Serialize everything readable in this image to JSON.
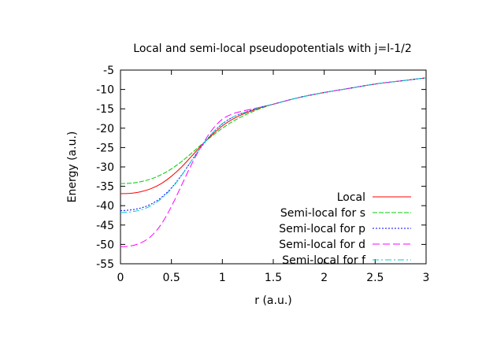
{
  "chart_data": {
    "type": "line",
    "title": "Local and semi-local pseudopotentials with j=l-1/2",
    "xlabel": "r (a.u.)",
    "ylabel": "Energy (a.u.)",
    "xlim": [
      0,
      3
    ],
    "ylim": [
      -55,
      -5
    ],
    "xticks": [
      0,
      0.5,
      1,
      1.5,
      2,
      2.5,
      3
    ],
    "xtick_labels": [
      "0",
      "0.5",
      "1",
      "1.5",
      "2",
      "2.5",
      "3"
    ],
    "yticks": [
      -55,
      -50,
      -45,
      -40,
      -35,
      -30,
      -25,
      -20,
      -15,
      -10,
      -5
    ],
    "ytick_labels": [
      "-55",
      "-50",
      "-45",
      "-40",
      "-35",
      "-30",
      "-25",
      "-20",
      "-15",
      "-10",
      "-5"
    ],
    "grid": false,
    "legend_position": "bottom-right",
    "x": [
      0,
      0.1,
      0.2,
      0.3,
      0.4,
      0.5,
      0.6,
      0.7,
      0.8,
      0.9,
      1.0,
      1.1,
      1.2,
      1.3,
      1.4,
      1.5,
      1.75,
      2.0,
      2.25,
      2.5,
      2.75,
      3.0
    ],
    "series": [
      {
        "name": "Local",
        "color": "#ff0000",
        "dash": "solid",
        "values": [
          -36.9,
          -36.8,
          -36.4,
          -35.6,
          -34.3,
          -32.4,
          -30.0,
          -27.2,
          -24.3,
          -21.7,
          -19.4,
          -17.7,
          -16.4,
          -15.4,
          -14.5,
          -13.8,
          -12.1,
          -10.8,
          -9.7,
          -8.6,
          -7.8,
          -7.0
        ]
      },
      {
        "name": "Semi-local for s",
        "color": "#00cc00",
        "dash": "dash",
        "values": [
          -34.3,
          -34.2,
          -33.8,
          -33.1,
          -32.0,
          -30.5,
          -28.6,
          -26.4,
          -24.1,
          -22.0,
          -20.0,
          -18.3,
          -16.9,
          -15.7,
          -14.7,
          -13.8,
          -12.1,
          -10.8,
          -9.7,
          -8.6,
          -7.8,
          -7.0
        ]
      },
      {
        "name": "Semi-local for p",
        "color": "#0000ff",
        "dash": "dot",
        "values": [
          -41.3,
          -41.1,
          -40.6,
          -39.6,
          -37.9,
          -35.4,
          -32.1,
          -28.3,
          -24.6,
          -21.4,
          -18.9,
          -17.2,
          -16.1,
          -15.2,
          -14.4,
          -13.8,
          -12.1,
          -10.8,
          -9.7,
          -8.6,
          -7.8,
          -7.0
        ]
      },
      {
        "name": "Semi-local for d",
        "color": "#ff00ff",
        "dash": "longdash",
        "values": [
          -50.6,
          -50.4,
          -49.6,
          -47.9,
          -44.8,
          -40.2,
          -34.7,
          -29.2,
          -24.4,
          -20.4,
          -17.7,
          -16.3,
          -15.6,
          -15.0,
          -14.4,
          -13.8,
          -12.1,
          -10.8,
          -9.7,
          -8.6,
          -7.8,
          -7.0
        ]
      },
      {
        "name": "Semi-local for f",
        "color": "#00cccc",
        "dash": "dashdot",
        "values": [
          -41.8,
          -41.6,
          -41.1,
          -40.0,
          -38.2,
          -35.6,
          -32.2,
          -28.3,
          -24.5,
          -21.3,
          -18.8,
          -17.2,
          -16.1,
          -15.2,
          -14.4,
          -13.8,
          -12.1,
          -10.8,
          -9.7,
          -8.6,
          -7.8,
          -7.0
        ]
      }
    ]
  }
}
